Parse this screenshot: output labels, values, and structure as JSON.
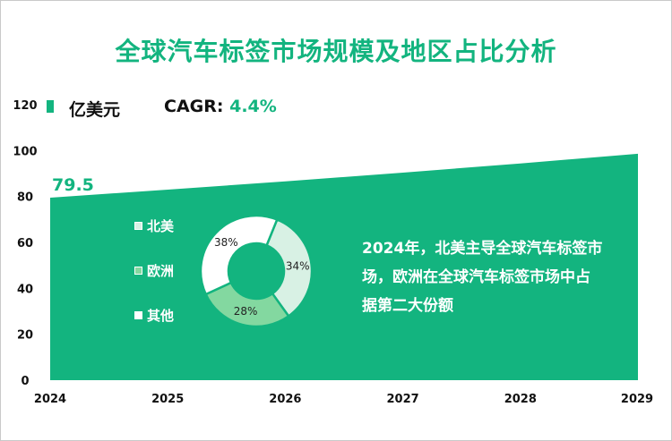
{
  "title": "全球汽车标签市场规模及地区占比分析",
  "unit_label": "亿美元",
  "cagr": {
    "label": "CAGR:",
    "value": "4.4%"
  },
  "note": "2024年，北美主导全球汽车标签市场，欧洲在全球汽车标签市场中占据第二大份额",
  "colors": {
    "accent": "#13b47f",
    "north_america": "#d8f1e4",
    "europe": "#83d8a0",
    "other": "#ffffff"
  },
  "chart_data": [
    {
      "type": "area",
      "title": "全球汽车标签市场规模及地区占比分析",
      "ylabel": "亿美元",
      "x": [
        2024,
        2025,
        2026,
        2027,
        2028,
        2029
      ],
      "xticks": [
        "2024",
        "2025",
        "2026",
        "2027",
        "2028",
        "2029"
      ],
      "yticks": [
        "0",
        "20",
        "40",
        "60",
        "80",
        "100",
        "120"
      ],
      "ylim": [
        0,
        120
      ],
      "series": [
        {
          "values": [
            79.5,
            83.0,
            86.6,
            90.4,
            94.4,
            98.6
          ]
        }
      ],
      "data_labels": [
        {
          "x": 2024,
          "text": "79.5"
        }
      ],
      "cagr": "4.4%",
      "grid": false
    },
    {
      "type": "pie",
      "categories": [
        "北美",
        "欧洲",
        "其他"
      ],
      "values": [
        34,
        28,
        38
      ],
      "labels": [
        "34%",
        "28%",
        "38%"
      ],
      "colors": [
        "#d8f1e4",
        "#83d8a0",
        "#ffffff"
      ],
      "legend_placement": "left"
    }
  ]
}
